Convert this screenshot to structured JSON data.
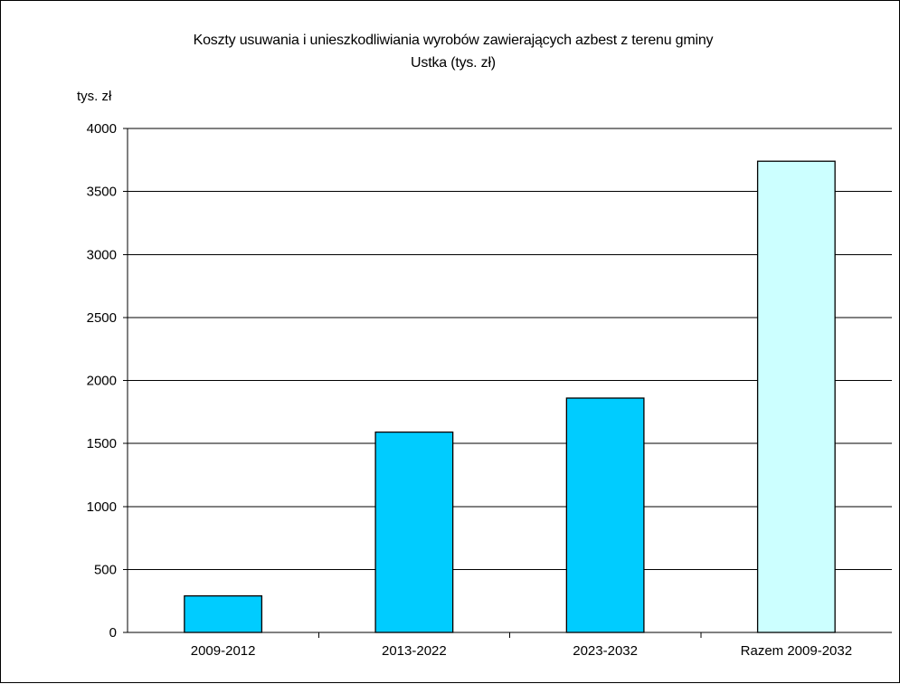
{
  "chart_data": {
    "type": "bar",
    "title_line1": "Koszty usuwania i unieszkodliwiania wyrobów zawierających azbest z terenu gminy",
    "title_line2": "Ustka (tys. zł)",
    "ylabel": "tys. zł",
    "xlabel": "",
    "categories": [
      "2009-2012",
      "2013-2022",
      "2023-2032",
      "Razem 2009-2032"
    ],
    "values": [
      290,
      1590,
      1860,
      3740
    ],
    "bar_colors": [
      "#00ccff",
      "#00ccff",
      "#00ccff",
      "#ccffff"
    ],
    "ylim": [
      0,
      4000
    ],
    "y_ticks": [
      0,
      500,
      1000,
      1500,
      2000,
      2500,
      3000,
      3500,
      4000
    ],
    "grid": true,
    "legend": "none"
  }
}
